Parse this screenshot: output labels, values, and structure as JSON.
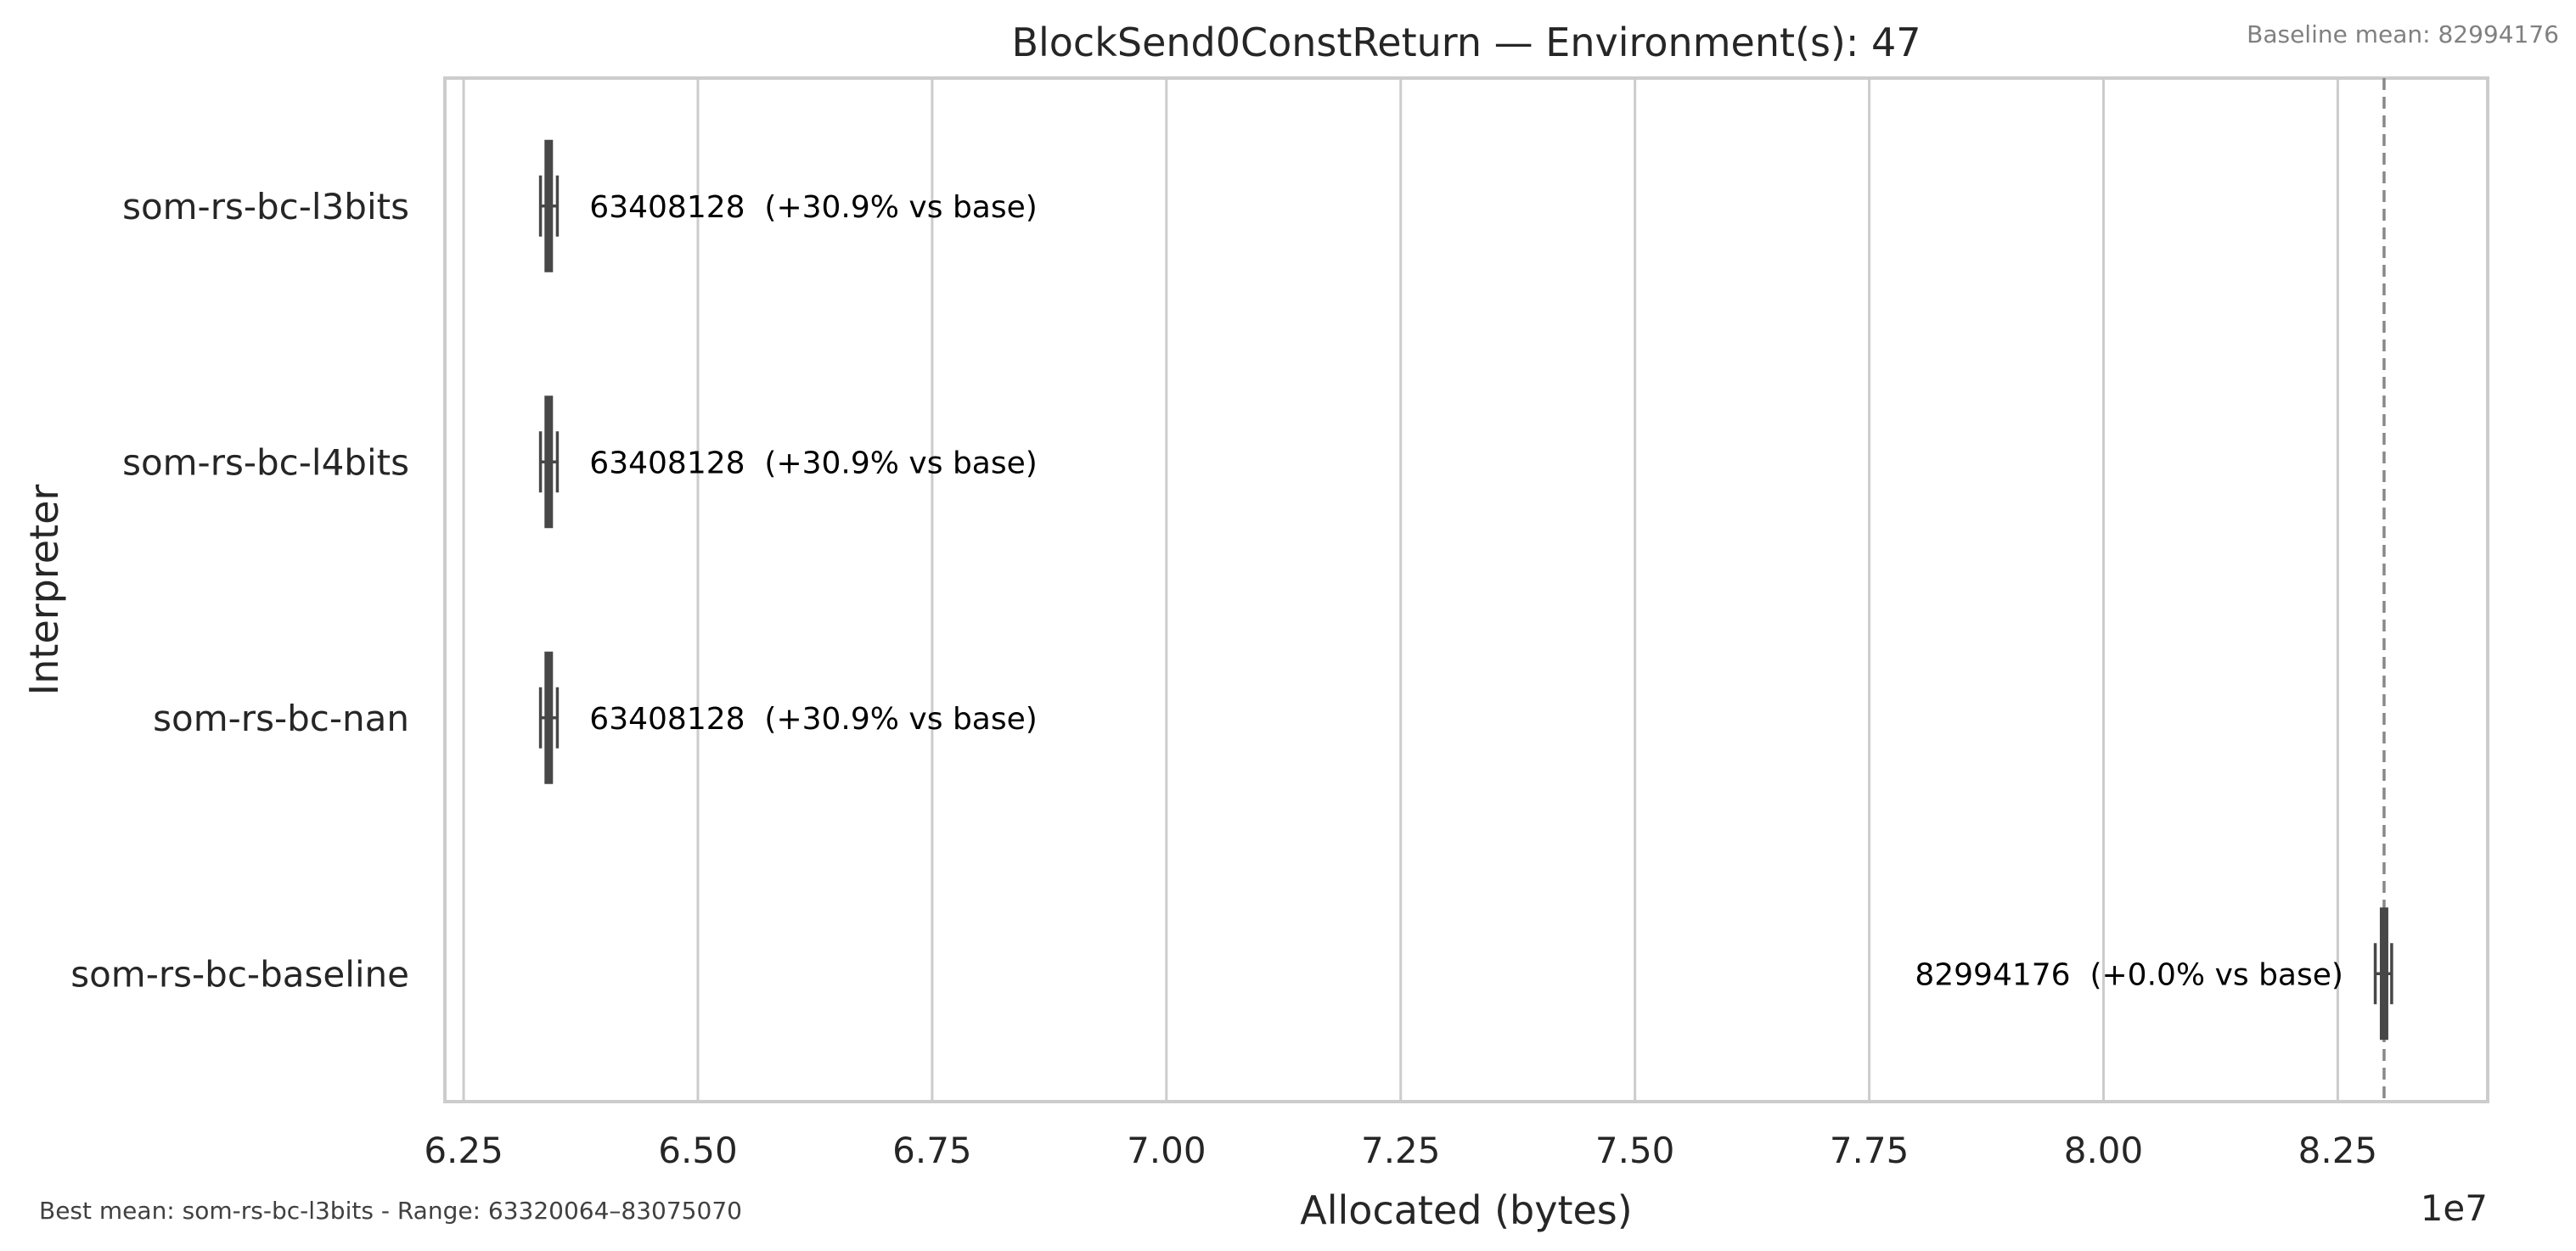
{
  "notes": {
    "baseline": "Baseline mean: 82994176",
    "best": "Best mean: som-rs-bc-l3bits - Range: 63320064–83075070"
  },
  "chart_data": {
    "type": "boxplot",
    "orientation": "horizontal",
    "title": "BlockSend0ConstReturn — Environment(s): 47",
    "xlabel": "Allocated (bytes)",
    "ylabel": "Interpreter",
    "x_scale_label": "1e7",
    "xlim": [
      62300000,
      84100000
    ],
    "x_ticks": [
      62500000,
      65000000,
      67500000,
      70000000,
      72500000,
      75000000,
      77500000,
      80000000,
      82500000
    ],
    "x_tick_labels": [
      "6.25",
      "6.50",
      "6.75",
      "7.00",
      "7.25",
      "7.50",
      "7.75",
      "8.00",
      "8.25"
    ],
    "grid": true,
    "categories": [
      "som-rs-bc-l3bits",
      "som-rs-bc-l4bits",
      "som-rs-bc-nan",
      "som-rs-bc-baseline"
    ],
    "series": [
      {
        "values": [
          63408128,
          63408128,
          63408128,
          82994176
        ],
        "box_low": [
          63320064,
          63320064,
          63320064,
          82900000
        ],
        "box_high": [
          63500000,
          63500000,
          63500000,
          83075070
        ]
      }
    ],
    "annotations": [
      "63408128  (+30.9% vs base)",
      "63408128  (+30.9% vs base)",
      "63408128  (+30.9% vs base)",
      "82994176  (+0.0% vs base)"
    ],
    "baseline_mean": 82994176,
    "colors": {
      "box": "#474747",
      "grid": "#cccccc",
      "frame": "#cccccc",
      "baseline_line": "#888888"
    }
  }
}
